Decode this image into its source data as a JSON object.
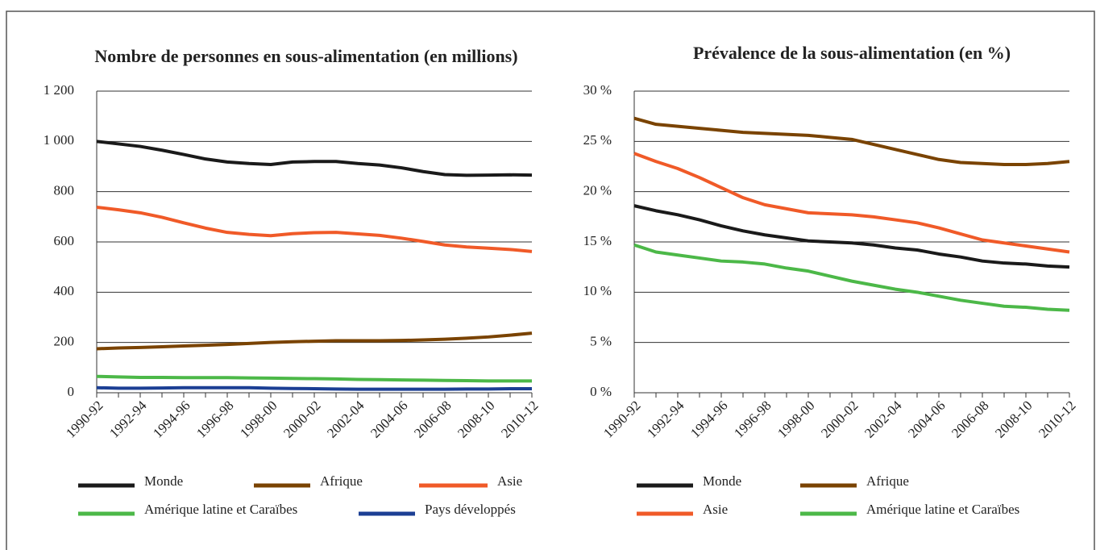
{
  "chart_data": [
    {
      "type": "line",
      "title": "Nombre de personnes en sous-alimentation (en millions)",
      "categories": [
        "1990-92",
        null,
        "1992-94",
        null,
        "1994-96",
        null,
        "1996-98",
        null,
        "1998-00",
        null,
        "2000-02",
        null,
        "2002-04",
        null,
        "2004-06",
        null,
        "2006-08",
        null,
        "2008-10",
        null,
        "2010-12"
      ],
      "ylim": [
        0,
        1200
      ],
      "yticks": [
        0,
        200,
        400,
        600,
        800,
        {
          "value": 1000,
          "label": "1 000"
        },
        {
          "value": 1200,
          "label": "1 200"
        }
      ],
      "grid": true,
      "series": [
        {
          "name": "Monde",
          "color": "#1a1a1a",
          "values": [
            1000,
            990,
            980,
            965,
            948,
            930,
            918,
            912,
            908,
            918,
            920,
            920,
            912,
            906,
            895,
            880,
            868,
            865,
            866,
            867,
            866
          ]
        },
        {
          "name": "Afrique",
          "color": "#7a4300",
          "values": [
            175,
            178,
            180,
            183,
            186,
            189,
            192,
            196,
            200,
            203,
            205,
            207,
            207,
            207,
            208,
            210,
            213,
            217,
            222,
            229,
            237
          ]
        },
        {
          "name": "Asie",
          "color": "#f05a28",
          "values": [
            738,
            728,
            716,
            698,
            676,
            655,
            638,
            630,
            625,
            633,
            637,
            638,
            632,
            626,
            615,
            602,
            588,
            580,
            575,
            570,
            562
          ]
        },
        {
          "name": "Amérique latine et Caraïbes",
          "color": "#4cb848",
          "values": [
            65,
            63,
            61,
            61,
            60,
            60,
            60,
            59,
            58,
            57,
            56,
            55,
            53,
            52,
            51,
            50,
            49,
            48,
            47,
            47,
            47
          ]
        },
        {
          "name": "Pays développés",
          "color": "#1c3f94",
          "values": [
            20,
            18,
            18,
            19,
            20,
            20,
            20,
            20,
            18,
            17,
            16,
            15,
            14,
            14,
            14,
            14,
            14,
            15,
            15,
            16,
            16
          ]
        }
      ]
    },
    {
      "type": "line",
      "title": "Prévalence de la sous-alimentation (en %)",
      "categories": [
        "1990-92",
        null,
        "1992-94",
        null,
        "1994-96",
        null,
        "1996-98",
        null,
        "1998-00",
        null,
        "2000-02",
        null,
        "2002-04",
        null,
        "2004-06",
        null,
        "2006-08",
        null,
        "2008-10",
        null,
        "2010-12"
      ],
      "ylim": [
        0,
        30
      ],
      "yticks": [
        {
          "value": 0,
          "label": "0 %"
        },
        {
          "value": 5,
          "label": "5 %"
        },
        {
          "value": 10,
          "label": "10 %"
        },
        {
          "value": 15,
          "label": "15 %"
        },
        {
          "value": 20,
          "label": "20 %"
        },
        {
          "value": 25,
          "label": "25 %"
        },
        {
          "value": 30,
          "label": "30 %"
        }
      ],
      "grid": true,
      "series": [
        {
          "name": "Monde",
          "color": "#1a1a1a",
          "values": [
            18.6,
            18.1,
            17.7,
            17.2,
            16.6,
            16.1,
            15.7,
            15.4,
            15.1,
            15.0,
            14.9,
            14.7,
            14.4,
            14.2,
            13.8,
            13.5,
            13.1,
            12.9,
            12.8,
            12.6,
            12.5
          ]
        },
        {
          "name": "Afrique",
          "color": "#7a4300",
          "values": [
            27.3,
            26.7,
            26.5,
            26.3,
            26.1,
            25.9,
            25.8,
            25.7,
            25.6,
            25.4,
            25.2,
            24.7,
            24.2,
            23.7,
            23.2,
            22.9,
            22.8,
            22.7,
            22.7,
            22.8,
            23.0
          ]
        },
        {
          "name": "Asie",
          "color": "#f05a28",
          "values": [
            23.8,
            23.0,
            22.3,
            21.4,
            20.4,
            19.4,
            18.7,
            18.3,
            17.9,
            17.8,
            17.7,
            17.5,
            17.2,
            16.9,
            16.4,
            15.8,
            15.2,
            14.9,
            14.6,
            14.3,
            14.0
          ]
        },
        {
          "name": "Amérique latine et Caraïbes",
          "color": "#4cb848",
          "values": [
            14.7,
            14.0,
            13.7,
            13.4,
            13.1,
            13.0,
            12.8,
            12.4,
            12.1,
            11.6,
            11.1,
            10.7,
            10.3,
            10.0,
            9.6,
            9.2,
            8.9,
            8.6,
            8.5,
            8.3,
            8.2
          ]
        }
      ]
    }
  ]
}
